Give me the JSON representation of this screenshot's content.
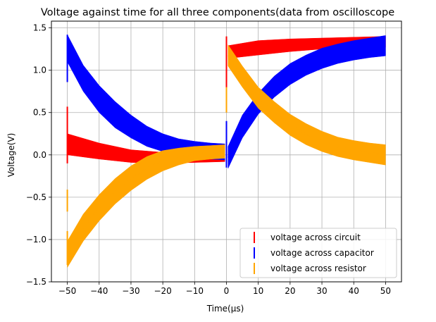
{
  "chart_data": {
    "type": "line",
    "title": "Voltage against time for all three components(data from oscilloscope",
    "xlabel": "Time(μs)",
    "ylabel": "Voltage(V)",
    "xlim": [
      -55,
      55
    ],
    "ylim": [
      -1.5,
      1.58
    ],
    "xticks": [
      -50,
      -40,
      -30,
      -20,
      -10,
      0,
      10,
      20,
      30,
      40,
      50
    ],
    "yticks": [
      -1.5,
      -1.0,
      -0.5,
      0.0,
      0.5,
      1.0,
      1.5
    ],
    "xtick_labels": [
      "−50",
      "−40",
      "−30",
      "−20",
      "−10",
      "0",
      "10",
      "20",
      "30",
      "40",
      "50"
    ],
    "ytick_labels": [
      "−1.5",
      "−1.0",
      "−0.5",
      "0.0",
      "0.5",
      "1.0",
      "1.5"
    ],
    "grid": true,
    "legend_position": "lower-right",
    "series": [
      {
        "name": "voltage across circuit",
        "color": "#ff0000",
        "band": [
          {
            "x": -50,
            "low": 0.0,
            "high": 0.25
          },
          {
            "x": -40,
            "low": -0.05,
            "high": 0.14
          },
          {
            "x": -30,
            "low": -0.09,
            "high": 0.06
          },
          {
            "x": -20,
            "low": -0.1,
            "high": 0.03
          },
          {
            "x": -10,
            "low": -0.09,
            "high": 0.02
          },
          {
            "x": -0.5,
            "low": -0.08,
            "high": 0.01
          },
          {
            "x": 0.5,
            "low": 1.14,
            "high": 1.29
          },
          {
            "x": 10,
            "low": 1.18,
            "high": 1.35
          },
          {
            "x": 20,
            "low": 1.22,
            "high": 1.37
          },
          {
            "x": 30,
            "low": 1.25,
            "high": 1.38
          },
          {
            "x": 40,
            "low": 1.26,
            "high": 1.39
          },
          {
            "x": 50,
            "low": 1.27,
            "high": 1.4
          }
        ],
        "spikes": [
          {
            "x": -50,
            "low": -0.1,
            "high": 0.57
          },
          {
            "x": 0,
            "low": 0.74,
            "high": 1.4
          }
        ]
      },
      {
        "name": "voltage across capacitor",
        "color": "#0000ff",
        "band": [
          {
            "x": -50,
            "low": 1.1,
            "high": 1.42
          },
          {
            "x": -45,
            "low": 0.75,
            "high": 1.06
          },
          {
            "x": -40,
            "low": 0.5,
            "high": 0.82
          },
          {
            "x": -35,
            "low": 0.32,
            "high": 0.63
          },
          {
            "x": -30,
            "low": 0.2,
            "high": 0.47
          },
          {
            "x": -25,
            "low": 0.1,
            "high": 0.34
          },
          {
            "x": -20,
            "low": 0.04,
            "high": 0.25
          },
          {
            "x": -15,
            "low": 0.0,
            "high": 0.19
          },
          {
            "x": -10,
            "low": -0.03,
            "high": 0.16
          },
          {
            "x": -5,
            "low": -0.05,
            "high": 0.14
          },
          {
            "x": -0.5,
            "low": -0.06,
            "high": 0.13
          },
          {
            "x": 0.5,
            "low": -0.16,
            "high": 0.1
          },
          {
            "x": 5,
            "low": 0.2,
            "high": 0.47
          },
          {
            "x": 10,
            "low": 0.48,
            "high": 0.73
          },
          {
            "x": 15,
            "low": 0.68,
            "high": 0.93
          },
          {
            "x": 20,
            "low": 0.83,
            "high": 1.08
          },
          {
            "x": 25,
            "low": 0.94,
            "high": 1.18
          },
          {
            "x": 30,
            "low": 1.02,
            "high": 1.26
          },
          {
            "x": 35,
            "low": 1.08,
            "high": 1.31
          },
          {
            "x": 40,
            "low": 1.12,
            "high": 1.35
          },
          {
            "x": 45,
            "low": 1.15,
            "high": 1.38
          },
          {
            "x": 50,
            "low": 1.17,
            "high": 1.41
          }
        ],
        "spikes": [
          {
            "x": -50,
            "low": 0.86,
            "high": 1.42
          },
          {
            "x": 0,
            "low": -0.15,
            "high": 0.4
          }
        ]
      },
      {
        "name": "voltage across resistor",
        "color": "#ffa500",
        "band": [
          {
            "x": -50,
            "low": -1.33,
            "high": -1.02
          },
          {
            "x": -45,
            "low": -1.02,
            "high": -0.7
          },
          {
            "x": -40,
            "low": -0.78,
            "high": -0.47
          },
          {
            "x": -35,
            "low": -0.58,
            "high": -0.28
          },
          {
            "x": -30,
            "low": -0.42,
            "high": -0.13
          },
          {
            "x": -25,
            "low": -0.29,
            "high": -0.02
          },
          {
            "x": -20,
            "low": -0.19,
            "high": 0.05
          },
          {
            "x": -15,
            "low": -0.12,
            "high": 0.08
          },
          {
            "x": -10,
            "low": -0.07,
            "high": 0.1
          },
          {
            "x": -5,
            "low": -0.05,
            "high": 0.11
          },
          {
            "x": -0.5,
            "low": -0.04,
            "high": 0.12
          },
          {
            "x": 0.5,
            "low": 1.05,
            "high": 1.3
          },
          {
            "x": 5,
            "low": 0.8,
            "high": 1.05
          },
          {
            "x": 10,
            "low": 0.55,
            "high": 0.8
          },
          {
            "x": 15,
            "low": 0.38,
            "high": 0.63
          },
          {
            "x": 20,
            "low": 0.23,
            "high": 0.48
          },
          {
            "x": 25,
            "low": 0.12,
            "high": 0.37
          },
          {
            "x": 30,
            "low": 0.04,
            "high": 0.28
          },
          {
            "x": 35,
            "low": -0.02,
            "high": 0.21
          },
          {
            "x": 40,
            "low": -0.06,
            "high": 0.17
          },
          {
            "x": 45,
            "low": -0.09,
            "high": 0.14
          },
          {
            "x": 50,
            "low": -0.12,
            "high": 0.12
          }
        ],
        "spikes": [
          {
            "x": -50,
            "low": -0.67,
            "high": -0.41
          },
          {
            "x": -50,
            "low": -1.3,
            "high": -0.9
          },
          {
            "x": 0,
            "low": 0.5,
            "high": 0.8
          }
        ]
      }
    ]
  }
}
